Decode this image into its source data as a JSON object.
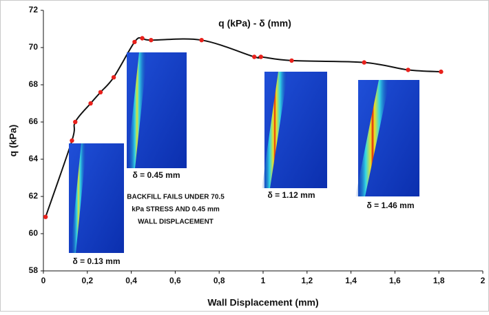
{
  "chart_data": {
    "type": "line",
    "title": "q (kPa) - δ (mm)",
    "x_label": "Wall Displacement (mm)",
    "y_label": "q (kPa)",
    "x": [
      0.01,
      0.13,
      0.145,
      0.215,
      0.26,
      0.32,
      0.415,
      0.45,
      0.49,
      0.72,
      0.96,
      0.99,
      1.13,
      1.46,
      1.66,
      1.81
    ],
    "series": [
      {
        "name": "q (kPa)",
        "color": "#e8211c",
        "line_color": "#111111",
        "values": [
          60.9,
          65.0,
          66.0,
          67.0,
          67.6,
          68.4,
          70.3,
          70.5,
          70.4,
          70.4,
          69.5,
          69.5,
          69.3,
          69.2,
          68.8,
          68.7
        ]
      }
    ],
    "xlim": [
      0,
      2
    ],
    "xticks": [
      0,
      {
        "value": 0.2,
        "label": "0,2"
      },
      {
        "value": 0.4,
        "label": "0,4"
      },
      {
        "value": 0.6,
        "label": "0,6"
      },
      {
        "value": 0.8,
        "label": "0,8"
      },
      1,
      {
        "value": 1.2,
        "label": "1,2"
      },
      {
        "value": 1.4,
        "label": "1,4"
      },
      {
        "value": 1.6,
        "label": "1,6"
      },
      {
        "value": 1.8,
        "label": "1,8"
      },
      2
    ],
    "ylim": [
      58,
      72
    ],
    "yticks": [
      58,
      60,
      62,
      64,
      66,
      68,
      70,
      72
    ],
    "grid": false,
    "annotations": {
      "failure_note": [
        "BACKFILL FAILS UNDER 70.5",
        "kPa STRESS AND 0.45 mm",
        "WALL DISPLACEMENT"
      ],
      "inset_captions": [
        "δ = 0.13 mm",
        "δ = 0.45 mm",
        "δ = 1.12 mm",
        "δ = 1.46 mm"
      ]
    }
  }
}
